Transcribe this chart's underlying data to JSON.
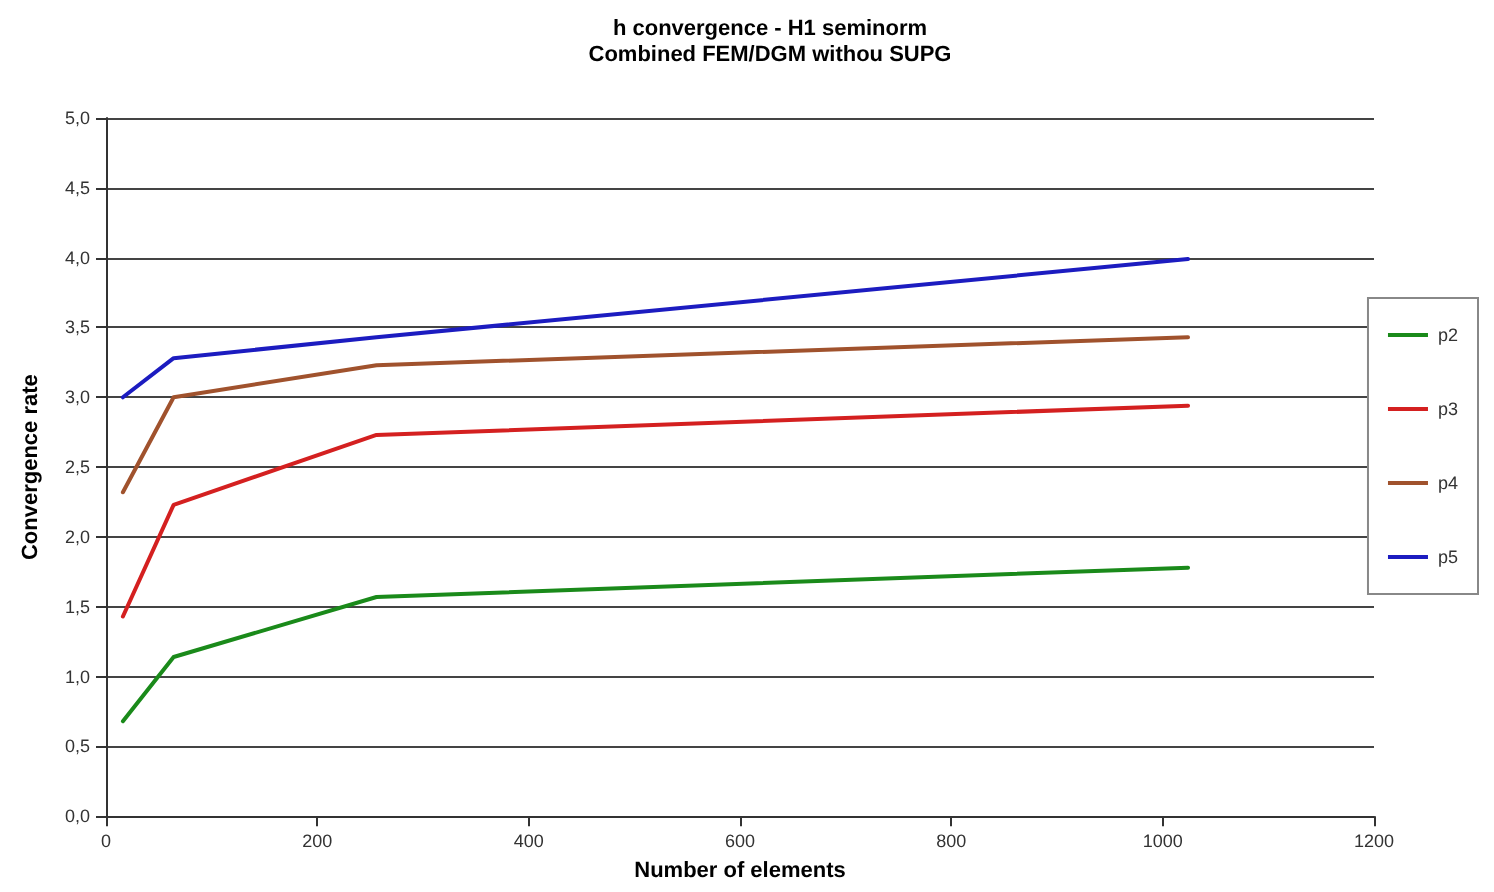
{
  "chart_data": {
    "type": "line",
    "title": "h convergence - H1 seminorm",
    "subtitle": "Combined FEM/DGM withou SUPG",
    "xlabel": "Number of elements",
    "ylabel": "Convergence rate",
    "x": [
      16,
      64,
      256,
      1024
    ],
    "series": [
      {
        "name": "p2",
        "color": "#1a8a1a",
        "values": [
          0.68,
          1.14,
          1.57,
          1.78
        ]
      },
      {
        "name": "p3",
        "color": "#d42020",
        "values": [
          1.43,
          2.23,
          2.73,
          2.94
        ]
      },
      {
        "name": "p4",
        "color": "#a0522d",
        "values": [
          2.32,
          3.0,
          3.23,
          3.43
        ]
      },
      {
        "name": "p5",
        "color": "#1c1cc0",
        "values": [
          3.0,
          3.28,
          3.43,
          3.99
        ]
      }
    ],
    "xlim": [
      0,
      1200
    ],
    "xticks": [
      0,
      200,
      400,
      600,
      800,
      1000,
      1200
    ],
    "ylim": [
      0,
      5
    ],
    "yticks": [
      {
        "value": 0,
        "label": "0,0"
      },
      {
        "value": 0.5,
        "label": "0,5"
      },
      {
        "value": 1,
        "label": "1,0"
      },
      {
        "value": 1.5,
        "label": "1,5"
      },
      {
        "value": 2,
        "label": "2,0"
      },
      {
        "value": 2.5,
        "label": "2,5"
      },
      {
        "value": 3,
        "label": "3,0"
      },
      {
        "value": 3.5,
        "label": "3,5"
      },
      {
        "value": 4,
        "label": "4,0"
      },
      {
        "value": 4.5,
        "label": "4,5"
      },
      {
        "value": 5,
        "label": "5,0"
      }
    ],
    "grid": "y",
    "legend": "right",
    "marker": "none",
    "line_style": "solid"
  }
}
